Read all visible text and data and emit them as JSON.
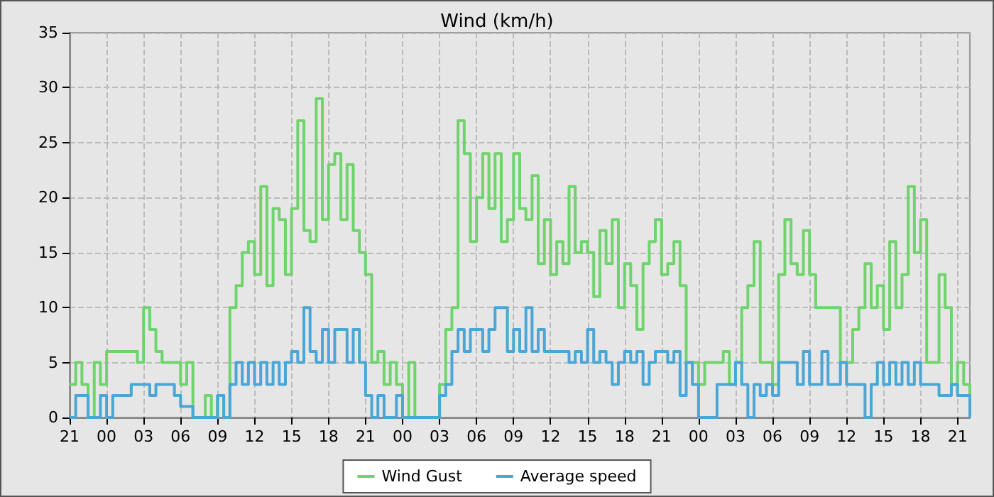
{
  "chart_data": {
    "type": "step",
    "title": "Wind (km/h)",
    "categories": [
      "21",
      null,
      null,
      null,
      null,
      null,
      "00",
      null,
      null,
      null,
      null,
      null,
      "03",
      null,
      null,
      null,
      null,
      null,
      "06",
      null,
      null,
      null,
      null,
      null,
      "09",
      null,
      null,
      null,
      null,
      null,
      "12",
      null,
      null,
      null,
      null,
      null,
      "15",
      null,
      null,
      null,
      null,
      null,
      "18",
      null,
      null,
      null,
      null,
      null,
      "21",
      null,
      null,
      null,
      null,
      null,
      "00",
      null,
      null,
      null,
      null,
      null,
      "03",
      null,
      null,
      null,
      null,
      null,
      "06",
      null,
      null,
      null,
      null,
      null,
      "09",
      null,
      null,
      null,
      null,
      null,
      "12",
      null,
      null,
      null,
      null,
      null,
      "15",
      null,
      null,
      null,
      null,
      null,
      "18",
      null,
      null,
      null,
      null,
      null,
      "21",
      null,
      null,
      null,
      null,
      null,
      "00",
      null,
      null,
      null,
      null,
      null,
      "03",
      null,
      null,
      null,
      null,
      null,
      "06",
      null,
      null,
      null,
      null,
      null,
      "09",
      null,
      null,
      null,
      null,
      null,
      "12",
      null,
      null,
      null,
      null,
      null,
      "15",
      null,
      null,
      null,
      null,
      null,
      "18",
      null,
      null,
      null,
      null,
      null,
      "21",
      null,
      null
    ],
    "ylim": [
      0,
      35
    ],
    "yticks": [
      0,
      5,
      10,
      15,
      20,
      25,
      30,
      35
    ],
    "grid": true,
    "legend": "bottom",
    "marker": "none",
    "line_style": "solid",
    "series": [
      {
        "name": "Wind Gust",
        "color": "#6fd46b",
        "values": [
          3,
          5,
          3,
          0,
          5,
          3,
          6,
          6,
          6,
          6,
          6,
          5,
          10,
          8,
          6,
          5,
          5,
          5,
          3,
          5,
          0,
          0,
          2,
          0,
          2,
          0,
          10,
          12,
          15,
          16,
          13,
          21,
          12,
          19,
          18,
          13,
          19,
          27,
          17,
          16,
          29,
          18,
          23,
          24,
          18,
          23,
          17,
          15,
          13,
          5,
          6,
          3,
          5,
          3,
          0,
          5,
          0,
          0,
          0,
          0,
          3,
          8,
          10,
          27,
          24,
          16,
          20,
          24,
          19,
          24,
          16,
          18,
          24,
          19,
          18,
          22,
          14,
          18,
          13,
          16,
          14,
          21,
          15,
          16,
          15,
          11,
          17,
          14,
          18,
          10,
          14,
          12,
          8,
          14,
          16,
          18,
          13,
          14,
          16,
          12,
          5,
          5,
          3,
          5,
          5,
          5,
          6,
          3,
          5,
          10,
          12,
          16,
          5,
          5,
          3,
          13,
          18,
          14,
          13,
          17,
          13,
          10,
          10,
          10,
          10,
          5,
          5,
          8,
          10,
          14,
          10,
          12,
          8,
          16,
          10,
          13,
          21,
          15,
          18,
          5,
          5,
          13,
          10,
          3,
          5,
          3,
          0
        ]
      },
      {
        "name": "Average speed",
        "color": "#4aa6d6",
        "values": [
          0,
          2,
          2,
          0,
          0,
          2,
          0,
          2,
          2,
          2,
          3,
          3,
          3,
          2,
          3,
          3,
          3,
          2,
          1,
          1,
          0,
          0,
          0,
          0,
          2,
          0,
          3,
          5,
          3,
          5,
          3,
          5,
          3,
          5,
          3,
          5,
          6,
          5,
          10,
          6,
          5,
          8,
          5,
          8,
          8,
          5,
          8,
          5,
          2,
          0,
          2,
          0,
          0,
          2,
          0,
          0,
          0,
          0,
          0,
          0,
          2,
          3,
          6,
          8,
          6,
          8,
          8,
          6,
          8,
          10,
          10,
          6,
          8,
          6,
          10,
          6,
          8,
          6,
          6,
          6,
          6,
          5,
          6,
          5,
          8,
          5,
          6,
          5,
          3,
          5,
          6,
          5,
          6,
          3,
          5,
          6,
          6,
          5,
          6,
          2,
          5,
          3,
          0,
          0,
          0,
          3,
          3,
          3,
          5,
          3,
          0,
          3,
          2,
          3,
          2,
          5,
          5,
          5,
          3,
          6,
          3,
          3,
          6,
          3,
          3,
          5,
          3,
          3,
          3,
          0,
          3,
          5,
          3,
          5,
          3,
          5,
          3,
          5,
          3,
          3,
          3,
          2,
          2,
          3,
          2,
          2,
          0
        ]
      }
    ]
  }
}
